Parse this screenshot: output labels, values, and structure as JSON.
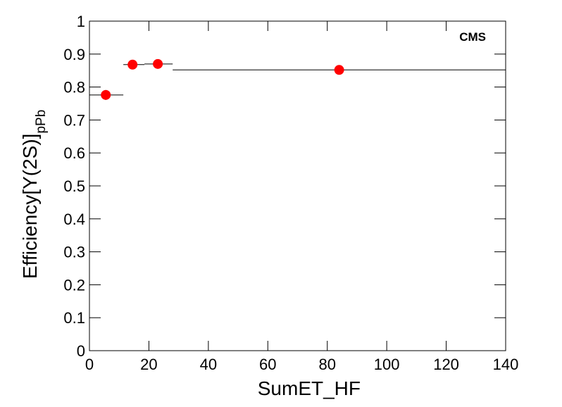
{
  "chart_data": {
    "type": "scatter",
    "xlabel": "SumET_HF",
    "ylabel": "Efficiency[Υ(2S)]",
    "ylabel_sub": "pPb",
    "annotation": "CMS",
    "x": [
      5.5,
      14.5,
      23,
      84
    ],
    "x_low": [
      0,
      11.4,
      18.5,
      28
    ],
    "x_high": [
      11.4,
      18.5,
      28,
      140
    ],
    "values": [
      0.776,
      0.868,
      0.87,
      0.852
    ],
    "yerr": [
      0.015,
      0.005,
      0.005,
      0.005
    ],
    "color": "#ff0000",
    "xlim": [
      0,
      140
    ],
    "xticks": [
      0,
      20,
      40,
      60,
      80,
      100,
      120,
      140
    ],
    "ylim": [
      0,
      1
    ],
    "yticks": [
      0,
      0.1,
      0.2,
      0.3,
      0.4,
      0.5,
      0.6,
      0.7,
      0.8,
      0.9,
      1
    ]
  }
}
